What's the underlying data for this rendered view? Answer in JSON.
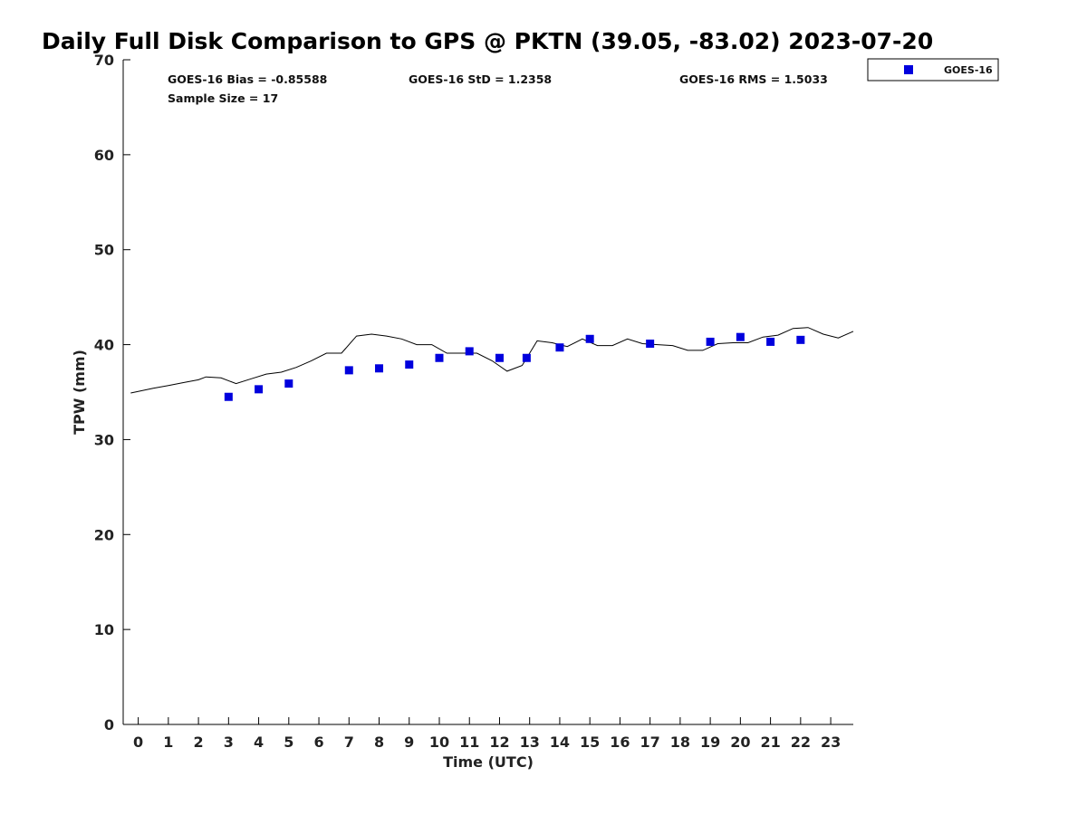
{
  "chart_data": {
    "type": "scatter",
    "title": "Daily Full Disk Comparison to GPS @ PKTN (39.05, -83.02) 2023-07-20",
    "xlabel": "Time (UTC)",
    "ylabel": "TPW (mm)",
    "xlim": [
      -0.5,
      23.75
    ],
    "ylim": [
      0,
      70
    ],
    "xticks": [
      0,
      1,
      2,
      3,
      4,
      5,
      6,
      7,
      8,
      9,
      10,
      11,
      12,
      13,
      14,
      15,
      16,
      17,
      18,
      19,
      20,
      21,
      22,
      23
    ],
    "yticks": [
      0,
      10,
      20,
      30,
      40,
      50,
      60,
      70
    ],
    "grid": false,
    "legend": {
      "placement": "outside-top-right",
      "entries": [
        "GOES-16"
      ]
    },
    "stats": {
      "bias": "GOES-16 Bias = -0.85588",
      "std": "GOES-16 StD = 1.2358",
      "rms": "GOES-16 RMS = 1.5033",
      "sample": "Sample Size = 17"
    },
    "colors": {
      "goes16": "#0000dd",
      "gps_line": "#000000"
    },
    "series": [
      {
        "name": "GOES-16",
        "marker": "square",
        "x": [
          3.0,
          4.0,
          5.0,
          7.0,
          8.0,
          9.0,
          10.0,
          11.0,
          12.0,
          12.9,
          14.0,
          15.0,
          17.0,
          19.0,
          20.0,
          21.0,
          22.0
        ],
        "y": [
          34.5,
          35.3,
          35.9,
          37.3,
          37.5,
          37.9,
          38.6,
          39.3,
          38.6,
          38.6,
          39.7,
          40.6,
          40.1,
          40.3,
          40.8,
          40.3,
          40.5
        ]
      },
      {
        "kind": "line",
        "x": [
          -0.25,
          0.5,
          1.0,
          1.5,
          2.0,
          2.25,
          2.75,
          3.25,
          3.75,
          4.25,
          4.75,
          5.25,
          5.75,
          6.25,
          6.75,
          7.25,
          7.75,
          8.25,
          8.75,
          9.25,
          9.75,
          10.25,
          10.75,
          11.25,
          11.75,
          12.25,
          12.75,
          13.25,
          13.75,
          14.25,
          14.75,
          15.25,
          15.75,
          16.25,
          16.75,
          17.25,
          17.75,
          18.25,
          18.75,
          19.25,
          19.75,
          20.25,
          20.75,
          21.25,
          21.75,
          22.25,
          22.75,
          23.25,
          23.75
        ],
        "y": [
          34.9,
          35.4,
          35.7,
          36.0,
          36.3,
          36.6,
          36.5,
          35.9,
          36.4,
          36.9,
          37.1,
          37.6,
          38.3,
          39.1,
          39.1,
          40.9,
          41.1,
          40.9,
          40.6,
          40.0,
          40.0,
          39.1,
          39.1,
          39.1,
          38.3,
          37.2,
          37.8,
          40.4,
          40.2,
          39.8,
          40.6,
          39.9,
          39.9,
          40.6,
          40.1,
          40.0,
          39.9,
          39.4,
          39.4,
          40.1,
          40.2,
          40.2,
          40.8,
          41.0,
          41.7,
          41.8,
          41.1,
          40.7,
          41.4
        ]
      }
    ]
  }
}
